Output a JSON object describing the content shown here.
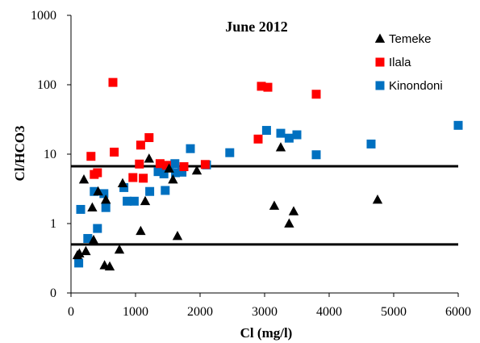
{
  "chart_data": {
    "type": "scatter",
    "title": "June 2012",
    "xlabel": "Cl (mg/l)",
    "ylabel": "Cl/HCO3",
    "xlim": [
      0,
      6000
    ],
    "x_ticks": [
      0,
      1000,
      2000,
      3000,
      4000,
      5000,
      6000
    ],
    "y_scale": "log",
    "ylim": [
      0.1,
      1000
    ],
    "y_ticks": [
      0.1,
      1,
      10,
      100,
      1000
    ],
    "y_tick_labels": [
      "0",
      "1",
      "10",
      "100",
      "1000"
    ],
    "grid": false,
    "legend_position": "top-right",
    "reference_lines": [
      {
        "y": 6.7
      },
      {
        "y": 0.5
      }
    ],
    "series": [
      {
        "name": "Temeke",
        "marker": "triangle",
        "color": "#000000",
        "points": [
          [
            100,
            0.35
          ],
          [
            130,
            0.37
          ],
          [
            200,
            4.3
          ],
          [
            230,
            0.4
          ],
          [
            330,
            1.7
          ],
          [
            350,
            0.58
          ],
          [
            420,
            2.9
          ],
          [
            520,
            0.25
          ],
          [
            540,
            2.2
          ],
          [
            600,
            0.24
          ],
          [
            750,
            0.42
          ],
          [
            800,
            3.8
          ],
          [
            1080,
            0.78
          ],
          [
            1150,
            2.1
          ],
          [
            1210,
            8.6
          ],
          [
            1520,
            6.2
          ],
          [
            1580,
            4.3
          ],
          [
            1650,
            0.66
          ],
          [
            1950,
            5.8
          ],
          [
            3150,
            1.8
          ],
          [
            3250,
            12.5
          ],
          [
            3380,
            1.0
          ],
          [
            3450,
            1.5
          ],
          [
            4750,
            2.2
          ]
        ]
      },
      {
        "name": "Ilala",
        "marker": "square",
        "color": "#ff0000",
        "points": [
          [
            310,
            9.3
          ],
          [
            360,
            5.1
          ],
          [
            410,
            5.4
          ],
          [
            650,
            108
          ],
          [
            670,
            10.7
          ],
          [
            960,
            4.6
          ],
          [
            1060,
            7.2
          ],
          [
            1080,
            13.5
          ],
          [
            1120,
            4.5
          ],
          [
            1210,
            17.3
          ],
          [
            1380,
            7.3
          ],
          [
            1480,
            6.9
          ],
          [
            1750,
            6.6
          ],
          [
            2080,
            7.1
          ],
          [
            2900,
            16.5
          ],
          [
            2950,
            95
          ],
          [
            3050,
            92
          ],
          [
            3800,
            73
          ]
        ]
      },
      {
        "name": "Kinondoni",
        "marker": "square",
        "color": "#0070c0",
        "points": [
          [
            120,
            0.27
          ],
          [
            150,
            1.6
          ],
          [
            260,
            0.61
          ],
          [
            360,
            2.9
          ],
          [
            410,
            0.85
          ],
          [
            510,
            2.7
          ],
          [
            540,
            1.7
          ],
          [
            820,
            3.3
          ],
          [
            870,
            2.1
          ],
          [
            980,
            2.1
          ],
          [
            1220,
            2.9
          ],
          [
            1350,
            5.6
          ],
          [
            1420,
            6.2
          ],
          [
            1440,
            5.2
          ],
          [
            1460,
            3.0
          ],
          [
            1520,
            6.5
          ],
          [
            1610,
            7.3
          ],
          [
            1620,
            5.4
          ],
          [
            1720,
            5.5
          ],
          [
            1850,
            12
          ],
          [
            2100,
            7.0
          ],
          [
            2460,
            10.5
          ],
          [
            3030,
            22
          ],
          [
            3250,
            20
          ],
          [
            3380,
            17
          ],
          [
            3500,
            19
          ],
          [
            3800,
            9.8
          ],
          [
            4650,
            14
          ],
          [
            6000,
            26
          ]
        ]
      }
    ]
  }
}
